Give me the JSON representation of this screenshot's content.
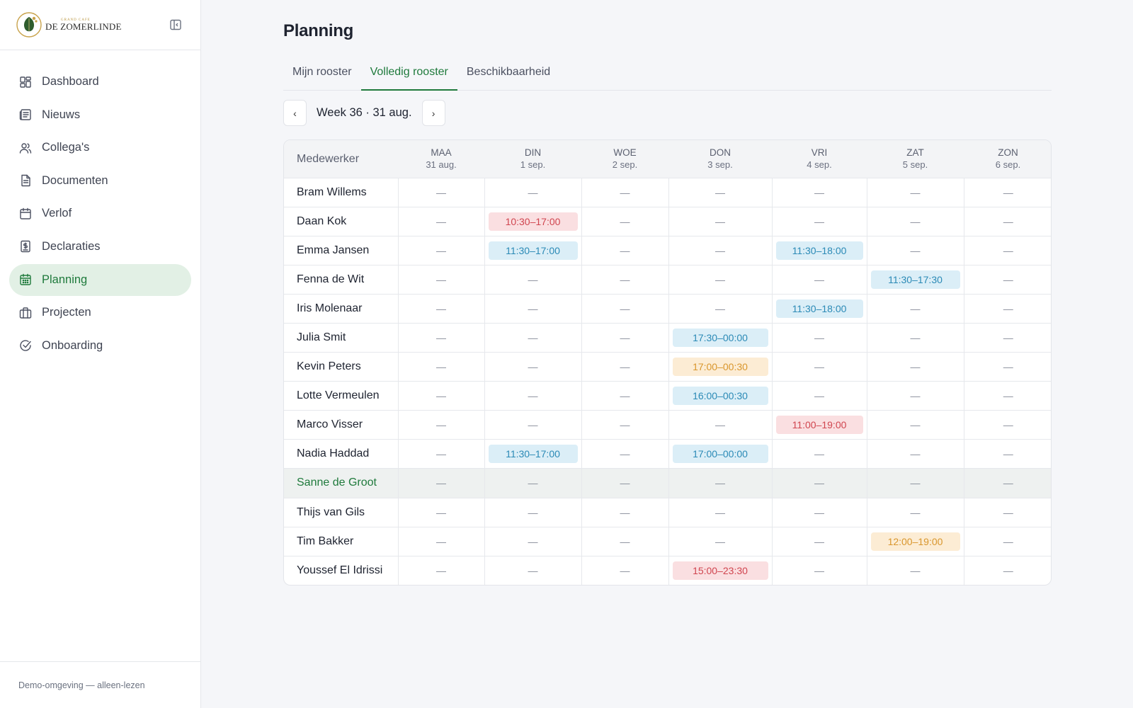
{
  "brand": {
    "tagline": "GRAND CAFE",
    "name": "DE ZOMERLINDE"
  },
  "nav": {
    "items": [
      {
        "label": "Dashboard",
        "icon": "dashboard-icon",
        "active": false
      },
      {
        "label": "Nieuws",
        "icon": "newspaper-icon",
        "active": false
      },
      {
        "label": "Collega's",
        "icon": "users-icon",
        "active": false
      },
      {
        "label": "Documenten",
        "icon": "document-icon",
        "active": false
      },
      {
        "label": "Verlof",
        "icon": "calendar-icon",
        "active": false
      },
      {
        "label": "Declaraties",
        "icon": "receipt-icon",
        "active": false
      },
      {
        "label": "Planning",
        "icon": "calendar-grid-icon",
        "active": true
      },
      {
        "label": "Projecten",
        "icon": "briefcase-icon",
        "active": false
      },
      {
        "label": "Onboarding",
        "icon": "check-circle-icon",
        "active": false
      }
    ]
  },
  "footer": {
    "text": "Demo-omgeving — alleen-lezen"
  },
  "page": {
    "title": "Planning"
  },
  "tabs": [
    {
      "label": "Mijn rooster",
      "active": false
    },
    {
      "label": "Volledig rooster",
      "active": true
    },
    {
      "label": "Beschikbaarheid",
      "active": false
    }
  ],
  "week": {
    "prev": "‹",
    "label": "Week 36 · 31 aug.",
    "next": "›"
  },
  "schedule": {
    "employee_header": "Medewerker",
    "days": [
      {
        "day": "MAA",
        "date": "31 aug."
      },
      {
        "day": "DIN",
        "date": "1 sep."
      },
      {
        "day": "WOE",
        "date": "2 sep."
      },
      {
        "day": "DON",
        "date": "3 sep."
      },
      {
        "day": "VRI",
        "date": "4 sep."
      },
      {
        "day": "ZAT",
        "date": "5 sep."
      },
      {
        "day": "ZON",
        "date": "6 sep."
      }
    ],
    "empty": "—",
    "colors": {
      "blue": "#dbeef7",
      "red": "#fadfe1",
      "orange": "#fcecd4",
      "accent": "#1f7a3c"
    },
    "rows": [
      {
        "name": "Bram Willems",
        "shifts": [
          null,
          null,
          null,
          null,
          null,
          null,
          null
        ]
      },
      {
        "name": "Daan Kok",
        "shifts": [
          null,
          {
            "time": "10:30–17:00",
            "color": "red"
          },
          null,
          null,
          null,
          null,
          null
        ]
      },
      {
        "name": "Emma Jansen",
        "shifts": [
          null,
          {
            "time": "11:30–17:00",
            "color": "blue"
          },
          null,
          null,
          {
            "time": "11:30–18:00",
            "color": "blue"
          },
          null,
          null
        ]
      },
      {
        "name": "Fenna de Wit",
        "shifts": [
          null,
          null,
          null,
          null,
          null,
          {
            "time": "11:30–17:30",
            "color": "blue"
          },
          null
        ]
      },
      {
        "name": "Iris Molenaar",
        "shifts": [
          null,
          null,
          null,
          null,
          {
            "time": "11:30–18:00",
            "color": "blue"
          },
          null,
          null
        ]
      },
      {
        "name": "Julia Smit",
        "shifts": [
          null,
          null,
          null,
          {
            "time": "17:30–00:00",
            "color": "blue"
          },
          null,
          null,
          null
        ]
      },
      {
        "name": "Kevin Peters",
        "shifts": [
          null,
          null,
          null,
          {
            "time": "17:00–00:30",
            "color": "orange"
          },
          null,
          null,
          null
        ]
      },
      {
        "name": "Lotte Vermeulen",
        "shifts": [
          null,
          null,
          null,
          {
            "time": "16:00–00:30",
            "color": "blue"
          },
          null,
          null,
          null
        ]
      },
      {
        "name": "Marco Visser",
        "shifts": [
          null,
          null,
          null,
          null,
          {
            "time": "11:00–19:00",
            "color": "red"
          },
          null,
          null
        ]
      },
      {
        "name": "Nadia Haddad",
        "shifts": [
          null,
          {
            "time": "11:30–17:00",
            "color": "blue"
          },
          null,
          {
            "time": "17:00–00:00",
            "color": "blue"
          },
          null,
          null,
          null
        ]
      },
      {
        "name": "Sanne de Groot",
        "highlight": true,
        "shifts": [
          null,
          null,
          null,
          null,
          null,
          null,
          null
        ]
      },
      {
        "name": "Thijs van Gils",
        "shifts": [
          null,
          null,
          null,
          null,
          null,
          null,
          null
        ]
      },
      {
        "name": "Tim Bakker",
        "shifts": [
          null,
          null,
          null,
          null,
          null,
          {
            "time": "12:00–19:00",
            "color": "orange"
          },
          null
        ]
      },
      {
        "name": "Youssef El Idrissi",
        "shifts": [
          null,
          null,
          null,
          {
            "time": "15:00–23:30",
            "color": "red"
          },
          null,
          null,
          null
        ]
      }
    ]
  }
}
